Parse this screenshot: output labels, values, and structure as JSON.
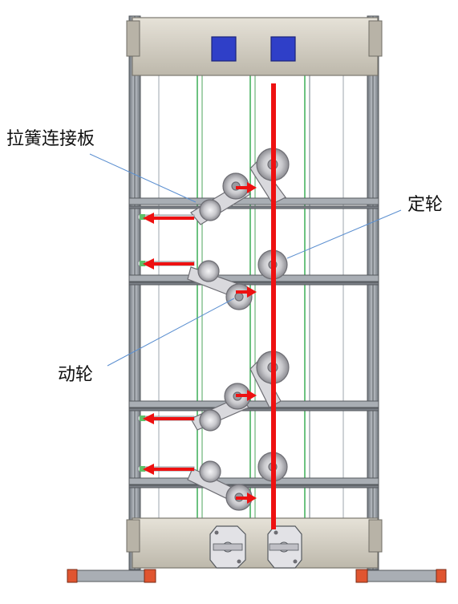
{
  "labels": {
    "spring_plate": "拉簧连接板",
    "fixed_pulley": "定轮",
    "moving_pulley": "动轮"
  },
  "colors": {
    "frame": "#8d949b",
    "frame_dark": "#55595e",
    "plate": "#cfcabe",
    "plate_edge": "#7a776f",
    "block": "#2f3fc8",
    "arrow": "#ee1111",
    "wire": "#2ea84a",
    "pulley": "#c9c9cc",
    "foot": "#e05530",
    "leader": "#5b8fd0"
  },
  "icons": {
    "square_blocks": "blue-square-block-icon",
    "arrows": "red-arrow-icon",
    "pulleys": "pulley-wheel-icon"
  }
}
